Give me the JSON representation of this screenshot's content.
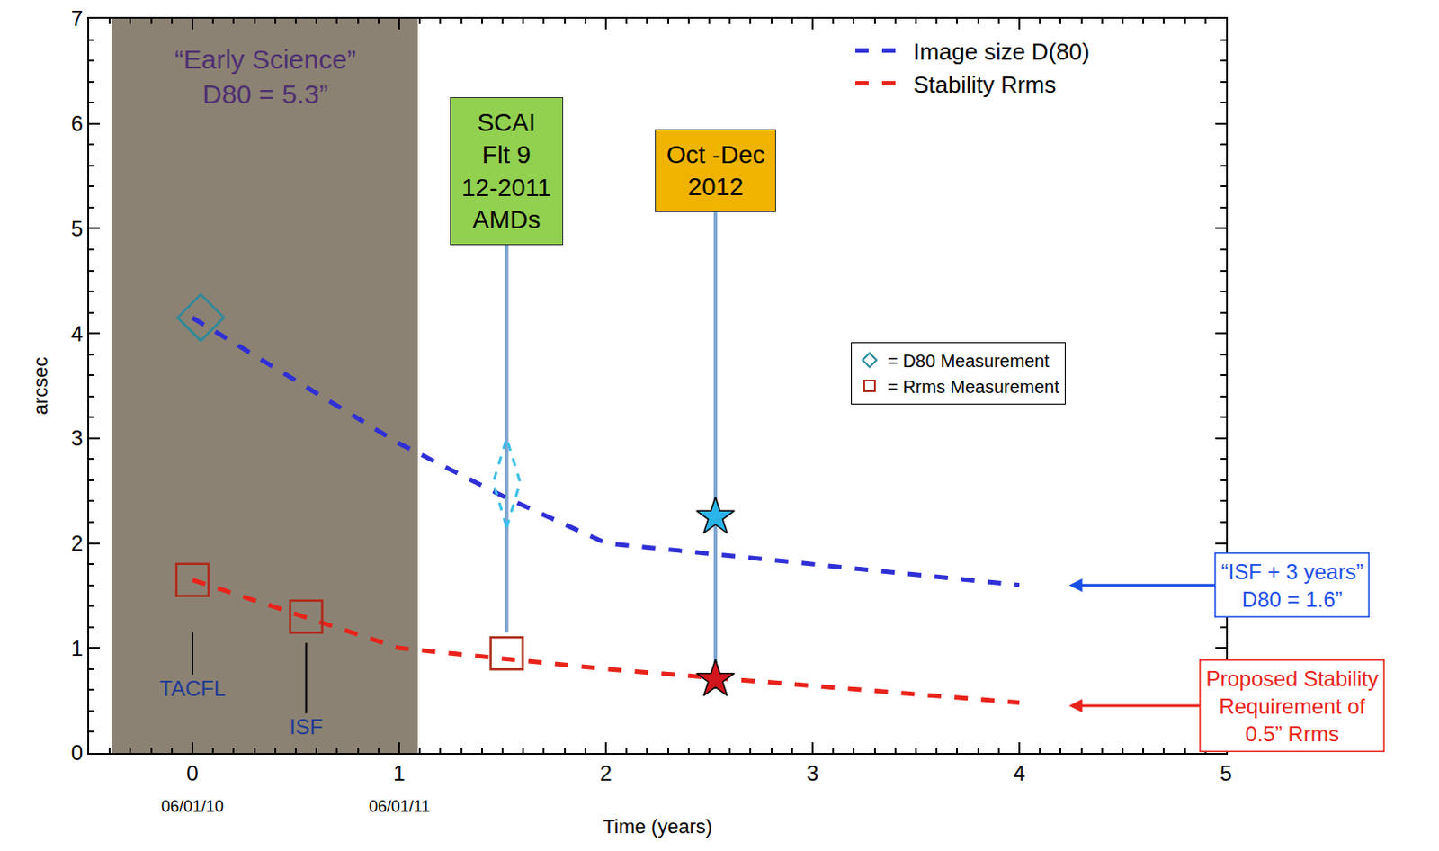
{
  "chart_data": {
    "type": "line",
    "xlabel": "Time (years)",
    "ylabel": "arcsec",
    "xlim": [
      -0.5,
      5
    ],
    "ylim": [
      0,
      7
    ],
    "xticks": [
      0,
      1,
      2,
      3,
      4,
      5
    ],
    "yticks": [
      0,
      1,
      2,
      3,
      4,
      5,
      6,
      7
    ],
    "grid": false,
    "legend": "top right",
    "series": [
      {
        "name": "Image size D(80)",
        "color": "#2f2fd6",
        "line_style": "dash",
        "x": [
          0,
          1,
          1.5,
          2,
          2.5,
          4
        ],
        "values": [
          4.15,
          2.95,
          2.45,
          2.0,
          1.9,
          1.6
        ]
      },
      {
        "name": "Stability Rrms",
        "color": "#e8231a",
        "line_style": "dash",
        "x": [
          0,
          1,
          2,
          4
        ],
        "values": [
          1.65,
          1.0,
          0.8,
          0.48
        ]
      }
    ],
    "measurements": [
      {
        "name": "= D80 Measurement",
        "marker": "diamond-open",
        "color": "#2a8a9c",
        "x": [
          0.04
        ],
        "values": [
          4.15
        ]
      },
      {
        "name": "= Rrms Measurement",
        "marker": "square-open",
        "color": "#b02a1a",
        "x": [
          0,
          0.55,
          1.52
        ],
        "values": [
          1.65,
          1.3,
          0.95
        ]
      },
      {
        "marker": "star",
        "color": "#2ab4e8",
        "x": [
          2.53
        ],
        "values": [
          2.25
        ]
      },
      {
        "marker": "star",
        "color": "#d0151c",
        "x": [
          2.53
        ],
        "values": [
          0.7
        ]
      }
    ],
    "ranges": [
      {
        "x": 1.52,
        "value": 2.58,
        "low": 2.15,
        "high": 3.0,
        "color": "#3cc0ea"
      }
    ],
    "shaded_region": {
      "xlim": [
        -0.39,
        1.09
      ],
      "text": "“Early Science”\nD80 = 5.3”",
      "y": 6.45,
      "color": "#8c8273"
    },
    "events": [
      {
        "text": "SCAI\nFlt 9\n12-2011\nAMDs",
        "x": 1.52,
        "y": 5.55,
        "line_from": 1.15,
        "color": "#92d050"
      },
      {
        "text": "Oct -Dec\n2012",
        "x": 2.53,
        "y": 5.55,
        "line_from": 0.7,
        "color": "#f0b400"
      }
    ],
    "point_labels": [
      {
        "text": "TACFL",
        "x": 0,
        "y": 1.15,
        "text_y": 0.62
      },
      {
        "text": "ISF",
        "x": 0.55,
        "y": 1.05,
        "text_y": 0.25
      }
    ],
    "tick_notes": [
      {
        "x": 0,
        "text": "06/01/10"
      },
      {
        "x": 1,
        "text": "06/01/11"
      }
    ],
    "callouts": [
      {
        "text": "“ISF + 3 years”\nD80 = 1.6”",
        "x": 4.24,
        "y": 1.6,
        "text_x": 5.32,
        "color": "#1a4fe6"
      },
      {
        "text": "Proposed Stability\nRequirement of\n0.5” Rrms",
        "x": 4.24,
        "y": 0.45,
        "text_x": 5.32,
        "color": "#e8231a"
      }
    ]
  }
}
